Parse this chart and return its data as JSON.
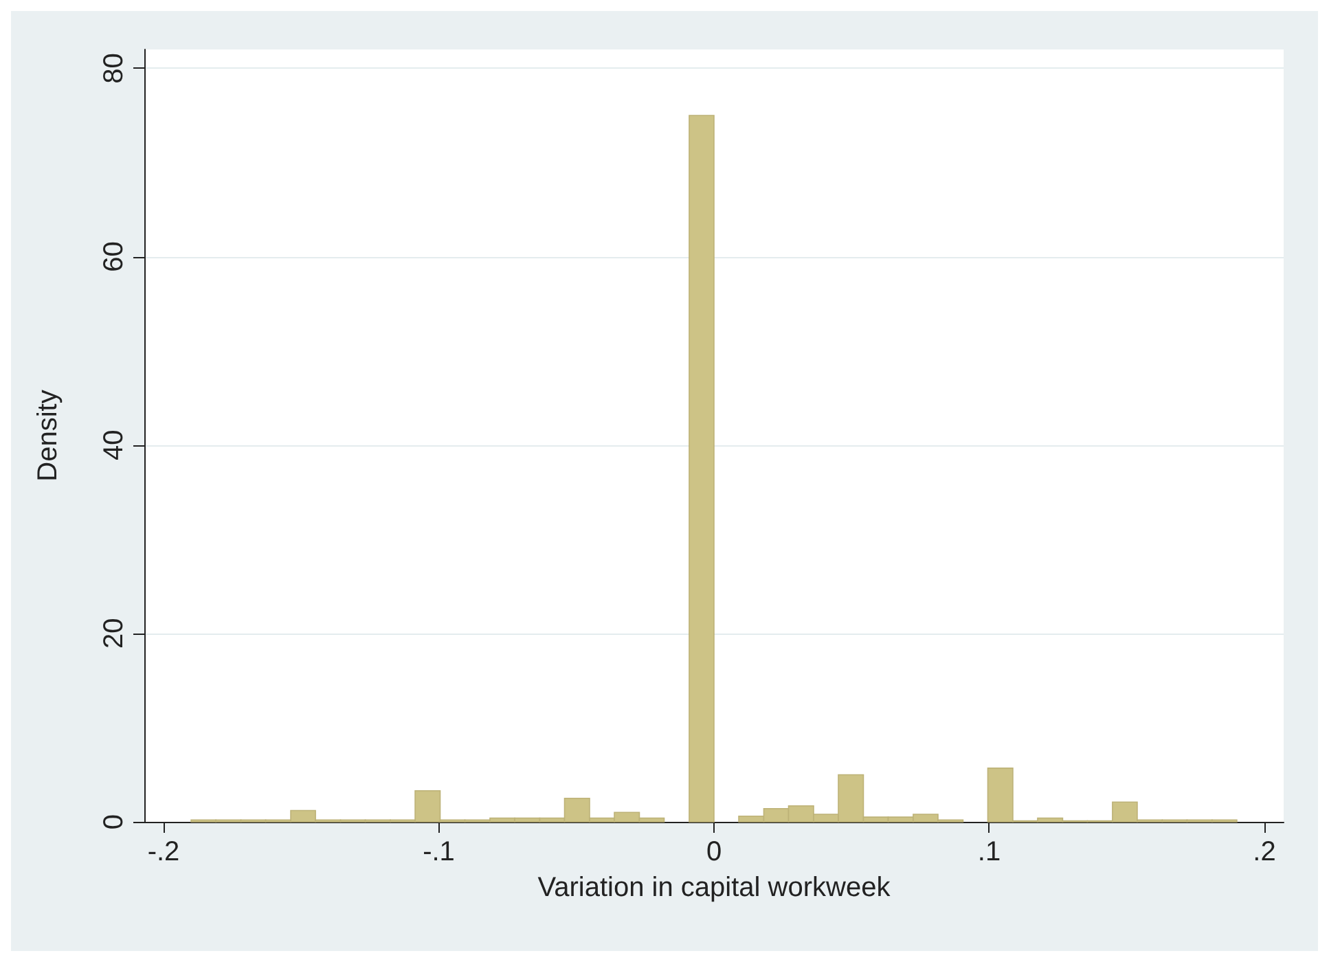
{
  "chart_data": {
    "type": "histogram",
    "xlabel": "Variation in capital workweek",
    "ylabel": "Density",
    "color": "#cdc386",
    "bins": [
      -0.19,
      -0.181,
      -0.1719,
      -0.1629,
      -0.1538,
      -0.1448,
      -0.1357,
      -0.1267,
      -0.1176,
      -0.1086,
      -0.0995,
      -0.0905,
      -0.0814,
      -0.0724,
      -0.0633,
      -0.0543,
      -0.0452,
      -0.0362,
      -0.0271,
      -0.0181,
      -0.009,
      0,
      0.009,
      0.0181,
      0.0271,
      0.0362,
      0.0452,
      0.0543,
      0.0633,
      0.0724,
      0.0814,
      0.0905,
      0.0995,
      0.1086,
      0.1176,
      0.1267,
      0.1357,
      0.1448,
      0.1538,
      0.1629,
      0.1719,
      0.181,
      0.19
    ],
    "values": [
      0.2,
      0.2,
      0.2,
      0.2,
      1.2,
      0.2,
      0.2,
      0.2,
      0.2,
      3.3,
      0.2,
      0.2,
      0.4,
      0.4,
      0.4,
      2.5,
      0.4,
      1,
      0.4,
      0,
      75,
      0,
      0.6,
      1.4,
      1.7,
      0.8,
      5,
      0.5,
      0.5,
      0.8,
      0.2,
      0,
      5.7,
      0.1,
      0.4,
      0.1,
      0.1,
      2.1,
      0.2,
      0.2,
      0.2,
      0.2
    ],
    "xlim": [
      -0.207,
      0.207
    ],
    "xticks": [
      {
        "value": -0.2,
        "label": "-.2"
      },
      {
        "value": -0.1,
        "label": "-.1"
      },
      0,
      {
        "value": 0.1,
        "label": ".1"
      },
      {
        "value": 0.2,
        "label": ".2"
      }
    ],
    "ylim": [
      0,
      82
    ],
    "yticks": [
      0,
      20,
      40,
      60,
      80
    ],
    "grid": "y"
  }
}
